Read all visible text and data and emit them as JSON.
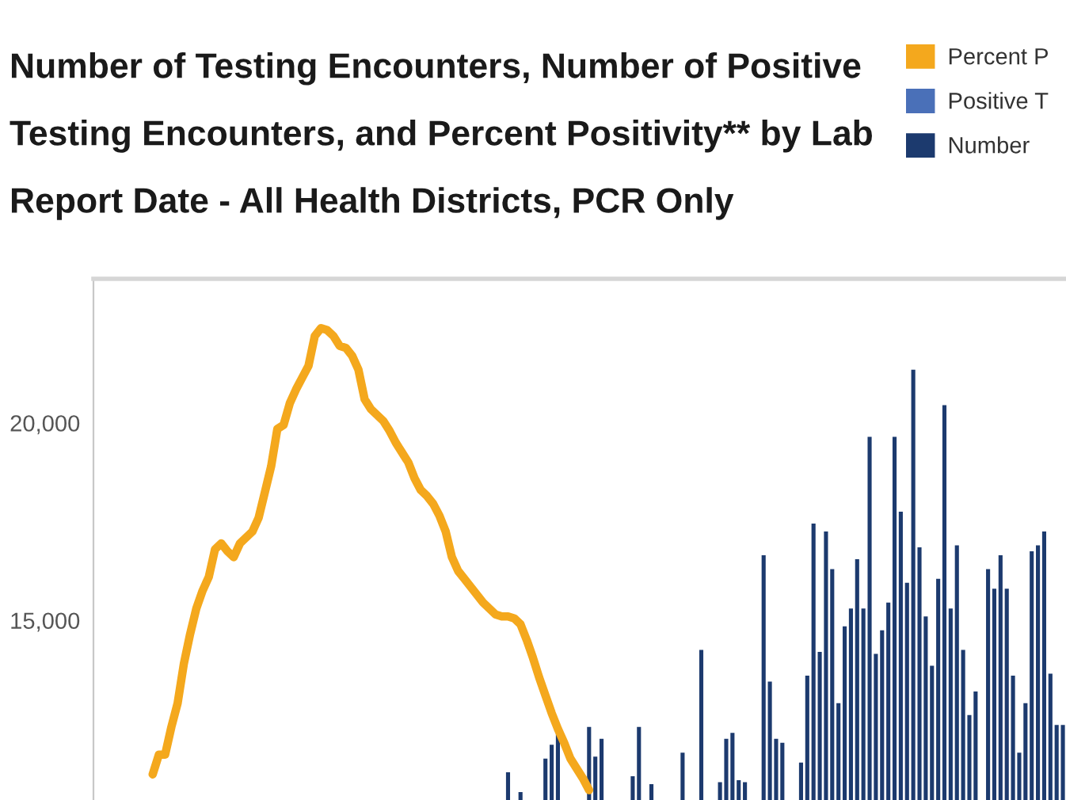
{
  "chart_data": {
    "type": "bar",
    "title": "Number of Testing Encounters, Number of Positive\nTesting Encounters, and Percent Positivity** by Lab\nReport Date - All Health Districts, PCR Only",
    "categories": [
      null,
      null,
      null,
      null,
      null,
      null,
      null,
      null,
      null,
      null,
      null,
      null,
      null,
      null,
      null,
      null,
      null,
      null,
      null,
      null,
      null,
      null,
      null,
      null,
      null,
      null,
      null,
      null,
      null,
      null,
      null,
      null,
      null,
      null,
      null,
      null,
      null,
      null,
      null,
      null,
      null,
      null,
      null,
      null,
      null,
      null,
      null,
      null,
      null,
      null,
      null,
      null,
      null,
      null,
      null,
      null,
      null,
      null,
      null,
      null,
      null,
      null,
      null,
      null,
      null,
      null,
      null,
      null,
      null,
      null,
      null,
      null,
      null,
      null,
      null,
      null,
      null,
      null,
      null,
      null,
      null,
      null,
      null,
      null,
      null,
      null,
      null,
      null,
      null,
      null,
      null,
      null,
      null,
      null,
      null,
      null,
      null,
      null,
      null,
      null,
      null,
      null,
      null,
      null,
      null,
      null,
      null,
      null,
      null,
      null,
      null,
      null,
      null,
      null,
      null,
      null,
      null,
      null,
      null,
      null,
      null,
      null,
      null,
      null,
      null,
      null,
      null,
      null,
      null,
      null,
      null,
      null,
      null,
      null,
      null,
      null,
      null,
      null,
      null,
      null,
      null,
      null,
      null,
      null,
      null,
      null,
      null,
      null,
      null,
      null,
      null,
      null,
      null,
      null,
      null,
      null
    ],
    "series": [
      {
        "name": "Percent P",
        "type": "line",
        "color": "#f4a81d",
        "values": [
          null,
          null,
          null,
          null,
          null,
          null,
          null,
          null,
          null,
          11100,
          11600,
          11600,
          12300,
          12900,
          13900,
          14650,
          15300,
          15750,
          16100,
          16800,
          16950,
          16750,
          16600,
          16950,
          17100,
          17250,
          17600,
          18250,
          18900,
          19850,
          19950,
          20500,
          20850,
          21150,
          21450,
          22200,
          22400,
          22350,
          22200,
          21950,
          21900,
          21700,
          21350,
          20600,
          20350,
          20200,
          20050,
          19800,
          19500,
          19250,
          19000,
          18600,
          18300,
          18150,
          17950,
          17650,
          17250,
          16600,
          16250,
          16050,
          15850,
          15650,
          15450,
          15300,
          15150,
          15100,
          15100,
          15050,
          14900,
          14500,
          14050,
          13550,
          13100,
          12650,
          12250,
          11900,
          11500,
          11250,
          11000,
          10700,
          null,
          null,
          null,
          null,
          null,
          null,
          null,
          null,
          null,
          null,
          null,
          null,
          null,
          null,
          null,
          null,
          null,
          null,
          null,
          null,
          null,
          null,
          null,
          null,
          null,
          null,
          null,
          null,
          null,
          null,
          null,
          null,
          null,
          null,
          null,
          null,
          null,
          null,
          null,
          null,
          null,
          null,
          null,
          null,
          null,
          null,
          null,
          null,
          null,
          null,
          null,
          null,
          null,
          null,
          null,
          null,
          null,
          null,
          null,
          null,
          null,
          null,
          null,
          null,
          null,
          null,
          null,
          null,
          null,
          null,
          null,
          null,
          null,
          null,
          null,
          null
        ]
      },
      {
        "name": "Positive T",
        "color": "#4a70b8",
        "values": [
          null,
          null,
          null,
          null,
          null,
          null,
          null,
          null,
          null,
          null,
          null,
          null,
          null,
          null,
          null,
          null,
          null,
          null,
          null,
          null,
          null,
          null,
          null,
          null,
          null,
          null,
          null,
          null,
          null,
          null,
          null,
          null,
          null,
          null,
          null,
          null,
          null,
          null,
          null,
          null,
          null,
          null,
          null,
          null,
          null,
          null,
          null,
          null,
          null,
          null,
          null,
          null,
          null,
          null,
          null,
          null,
          null,
          null,
          null,
          null,
          null,
          null,
          null,
          null,
          null,
          null,
          null,
          null,
          null,
          null,
          null,
          null,
          null,
          null,
          null,
          null,
          null,
          null,
          null,
          null,
          null,
          null,
          null,
          null,
          null,
          null,
          null,
          null,
          null,
          null,
          null,
          null,
          null,
          null,
          null,
          null,
          null,
          null,
          null,
          null,
          null,
          null,
          null,
          null,
          null,
          null,
          null,
          null,
          null,
          null,
          null,
          null,
          null,
          null,
          null,
          null,
          null,
          null,
          null,
          null,
          null,
          null,
          null,
          null,
          null,
          null,
          null,
          null,
          null,
          null,
          null,
          null,
          null,
          null,
          null,
          null,
          null,
          null,
          null,
          null,
          null,
          null,
          null,
          null,
          null,
          null,
          null,
          null,
          null,
          null,
          null,
          null,
          null,
          null,
          null,
          null
        ]
      },
      {
        "name": "Number",
        "color": "#1c3a6e",
        "values": [
          null,
          null,
          null,
          null,
          null,
          null,
          null,
          null,
          null,
          null,
          null,
          null,
          null,
          null,
          null,
          null,
          null,
          null,
          null,
          null,
          null,
          null,
          null,
          null,
          null,
          null,
          null,
          null,
          null,
          null,
          null,
          null,
          null,
          null,
          null,
          null,
          null,
          null,
          null,
          null,
          null,
          null,
          null,
          null,
          null,
          null,
          null,
          null,
          null,
          null,
          null,
          null,
          null,
          null,
          null,
          null,
          null,
          null,
          null,
          null,
          null,
          null,
          null,
          null,
          null,
          null,
          11150,
          null,
          10650,
          null,
          null,
          null,
          11500,
          11850,
          12150,
          null,
          null,
          null,
          null,
          12300,
          11550,
          12000,
          null,
          null,
          null,
          null,
          11050,
          12300,
          null,
          10850,
          null,
          null,
          null,
          null,
          11650,
          null,
          null,
          14250,
          null,
          null,
          10900,
          12000,
          12150,
          10950,
          10900,
          null,
          null,
          16650,
          13450,
          12000,
          11900,
          null,
          null,
          11400,
          13600,
          17450,
          14200,
          17250,
          16300,
          12900,
          14850,
          15300,
          16550,
          15300,
          19650,
          14150,
          14750,
          15450,
          19650,
          17750,
          15950,
          21350,
          16850,
          15100,
          13850,
          16050,
          20450,
          15300,
          16900,
          14250,
          12600,
          13200,
          null,
          16300,
          15800,
          16650,
          15800,
          13600,
          11650,
          12900,
          16750,
          16900,
          17250,
          13650,
          12350,
          12350
        ]
      }
    ],
    "ylim": [
      10450,
      23650
    ],
    "yticks": [
      {
        "value": 15000,
        "label": "15,000"
      },
      {
        "value": 20000,
        "label": "20,000"
      }
    ],
    "legend": "top right",
    "tick_labels": "y"
  }
}
